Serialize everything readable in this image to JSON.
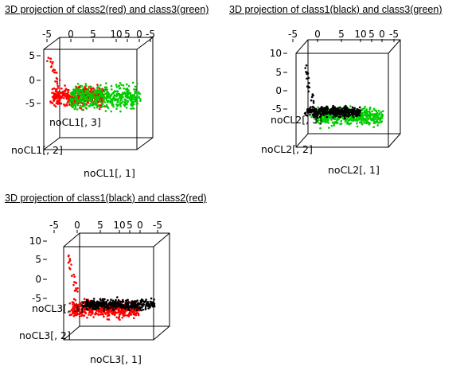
{
  "chart_data": [
    {
      "type": "scatter",
      "title": "3D projection of class2(red) and class3(green)",
      "top_ticks": [
        "-5",
        "0",
        "5",
        "10",
        "5",
        "0",
        "-5"
      ],
      "left_ticks": [
        "5",
        "0",
        "-5"
      ],
      "zlabel": "noCL1[, 3]",
      "ylabel": "noCL1[, 2]",
      "xlabel": "noCL1[, 1]",
      "x_range": [
        -5,
        10
      ],
      "y_range": [
        -7,
        6
      ],
      "series": [
        {
          "color": "#ff0000",
          "x_range": [
            -4.5,
            3.5
          ],
          "y_band": [
            -2,
            1.8
          ],
          "count": 420,
          "tail": "up-left"
        },
        {
          "color": "#00cc00",
          "x_range": [
            -1.5,
            9
          ],
          "y_band": [
            -2.5,
            2.2
          ],
          "count": 500,
          "tail": "none"
        }
      ]
    },
    {
      "type": "scatter",
      "title": "3D projection of class1(black) and class3(green)",
      "top_ticks": [
        "-5",
        "0",
        "5",
        "10",
        "5",
        "0",
        "-5"
      ],
      "left_ticks": [
        "10",
        "5",
        "0",
        "-5"
      ],
      "zlabel": "noCL2[, 3]",
      "ylabel": "noCL2[, 2]",
      "xlabel": "noCL2[, 1]",
      "x_range": [
        -5,
        10
      ],
      "y_range": [
        -7,
        12
      ],
      "series": [
        {
          "color": "#00cc00",
          "x_range": [
            -3,
            8
          ],
          "y_band": [
            -3.5,
            1.5
          ],
          "count": 480,
          "tail": "none"
        },
        {
          "color": "#000000",
          "x_range": [
            -4,
            4.5
          ],
          "y_band": [
            -1.5,
            1.5
          ],
          "count": 380,
          "tail": "up-left"
        }
      ]
    },
    {
      "type": "scatter",
      "title": "3D projection of class1(black) and class2(red)",
      "top_ticks": [
        "-5",
        "0",
        "5",
        "10",
        "5",
        "0",
        "-5"
      ],
      "left_ticks": [
        "10",
        "5",
        "0",
        "-5"
      ],
      "zlabel": "noCL3[, 3]",
      "ylabel": "noCL3[, 2]",
      "xlabel": "noCL3[, 1]",
      "x_range": [
        -5,
        10
      ],
      "y_range": [
        -7,
        12
      ],
      "series": [
        {
          "color": "#ff0000",
          "x_range": [
            -4.5,
            6
          ],
          "y_band": [
            -3.5,
            1.5
          ],
          "count": 500,
          "tail": "up-left"
        },
        {
          "color": "#000000",
          "x_range": [
            -2.5,
            8.5
          ],
          "y_band": [
            -1.5,
            1.5
          ],
          "count": 380,
          "tail": "none"
        }
      ]
    }
  ]
}
